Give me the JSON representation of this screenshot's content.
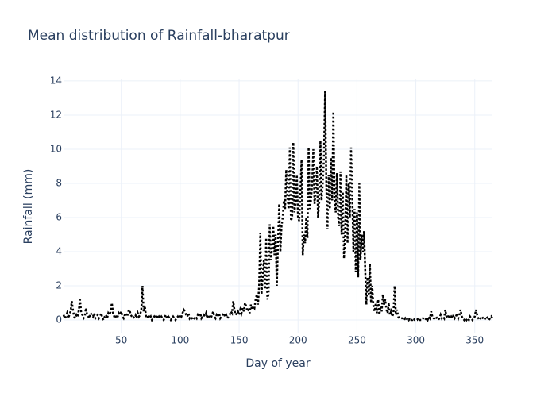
{
  "chart_data": {
    "type": "line",
    "title": "Mean distribution of Rainfall-bharatpur",
    "x_label": "Day of year",
    "y_label": "Rainfall (mm)",
    "color": "#000000",
    "line_dash": "dot",
    "grid": true,
    "xlim": [
      1,
      365
    ],
    "xticks": [
      50,
      100,
      150,
      200,
      250,
      300,
      350
    ],
    "ylim": [
      -0.79,
      14.09
    ],
    "yticks": [
      0,
      2,
      4,
      6,
      8,
      10,
      12,
      14
    ],
    "x": [
      1,
      2,
      3,
      4,
      5,
      6,
      7,
      8,
      9,
      10,
      11,
      12,
      13,
      14,
      15,
      16,
      17,
      18,
      19,
      20,
      21,
      22,
      23,
      24,
      25,
      26,
      27,
      28,
      29,
      30,
      31,
      32,
      33,
      34,
      35,
      36,
      37,
      38,
      39,
      40,
      41,
      42,
      43,
      44,
      45,
      46,
      47,
      48,
      49,
      50,
      51,
      52,
      53,
      54,
      55,
      56,
      57,
      58,
      59,
      60,
      61,
      62,
      63,
      64,
      65,
      66,
      67,
      68,
      69,
      70,
      71,
      72,
      73,
      74,
      75,
      76,
      77,
      78,
      79,
      80,
      81,
      82,
      83,
      84,
      85,
      86,
      87,
      88,
      89,
      90,
      91,
      92,
      93,
      94,
      95,
      96,
      97,
      98,
      99,
      100,
      101,
      102,
      103,
      104,
      105,
      106,
      107,
      108,
      109,
      110,
      111,
      112,
      113,
      114,
      115,
      116,
      117,
      118,
      119,
      120,
      121,
      122,
      123,
      124,
      125,
      126,
      127,
      128,
      129,
      130,
      131,
      132,
      133,
      134,
      135,
      136,
      137,
      138,
      139,
      140,
      141,
      142,
      143,
      144,
      145,
      146,
      147,
      148,
      149,
      150,
      151,
      152,
      153,
      154,
      155,
      156,
      157,
      158,
      159,
      160,
      161,
      162,
      163,
      164,
      165,
      166,
      167,
      168,
      169,
      170,
      171,
      172,
      173,
      174,
      175,
      176,
      177,
      178,
      179,
      180,
      181,
      182,
      183,
      184,
      185,
      186,
      187,
      188,
      189,
      190,
      191,
      192,
      193,
      194,
      195,
      196,
      197,
      198,
      199,
      200,
      201,
      202,
      203,
      204,
      205,
      206,
      207,
      208,
      209,
      210,
      211,
      212,
      213,
      214,
      215,
      216,
      217,
      218,
      219,
      220,
      221,
      222,
      223,
      224,
      225,
      226,
      227,
      228,
      229,
      230,
      231,
      232,
      233,
      234,
      235,
      236,
      237,
      238,
      239,
      240,
      241,
      242,
      243,
      244,
      245,
      246,
      247,
      248,
      249,
      250,
      251,
      252,
      253,
      254,
      255,
      256,
      257,
      258,
      259,
      260,
      261,
      262,
      263,
      264,
      265,
      266,
      267,
      268,
      269,
      270,
      271,
      272,
      273,
      274,
      275,
      276,
      277,
      278,
      279,
      280,
      281,
      282,
      283,
      284,
      285,
      286,
      287,
      288,
      289,
      290,
      291,
      292,
      293,
      294,
      295,
      296,
      297,
      298,
      299,
      300,
      301,
      302,
      303,
      304,
      305,
      306,
      307,
      308,
      309,
      310,
      311,
      312,
      313,
      314,
      315,
      316,
      317,
      318,
      319,
      320,
      321,
      322,
      323,
      324,
      325,
      326,
      327,
      328,
      329,
      330,
      331,
      332,
      333,
      334,
      335,
      336,
      337,
      338,
      339,
      340,
      341,
      342,
      343,
      344,
      345,
      346,
      347,
      348,
      349,
      350,
      351,
      352,
      353,
      354,
      355,
      356,
      357,
      358,
      359,
      360,
      361,
      362,
      363,
      364,
      365
    ],
    "values": [
      0.3,
      0.1,
      0.2,
      0.4,
      0.1,
      0.3,
      0.5,
      1.1,
      0.6,
      0.2,
      0.1,
      0.3,
      0.2,
      0.6,
      1.2,
      0.4,
      0.3,
      0.1,
      0.2,
      0.7,
      0.3,
      0.2,
      0.1,
      0.4,
      0.3,
      0.2,
      0.4,
      0.1,
      0.2,
      0.3,
      0.1,
      0.2,
      0.4,
      0.1,
      0.0,
      0.2,
      0.3,
      0.1,
      0.4,
      0.3,
      0.5,
      1.0,
      0.4,
      0.2,
      0.3,
      0.1,
      0.2,
      0.4,
      0.3,
      0.5,
      0.2,
      0.1,
      0.3,
      0.4,
      0.2,
      0.5,
      0.6,
      0.3,
      0.2,
      0.1,
      0.2,
      0.3,
      0.1,
      0.4,
      0.2,
      0.3,
      0.6,
      2.0,
      0.5,
      0.8,
      0.2,
      0.1,
      0.3,
      0.1,
      0.2,
      0.0,
      0.1,
      0.2,
      0.1,
      0.3,
      0.1,
      0.2,
      0.1,
      0.2,
      0.1,
      0.0,
      0.2,
      0.3,
      0.1,
      0.2,
      0.1,
      0.0,
      0.1,
      0.2,
      0.1,
      0.0,
      0.1,
      0.2,
      0.1,
      0.3,
      0.2,
      0.4,
      0.6,
      0.5,
      0.3,
      0.2,
      0.4,
      0.1,
      0.2,
      0.1,
      0.0,
      0.1,
      0.2,
      0.1,
      0.3,
      0.2,
      0.4,
      0.1,
      0.2,
      0.3,
      0.2,
      0.4,
      0.1,
      0.3,
      0.2,
      0.1,
      0.3,
      0.5,
      0.2,
      0.1,
      0.3,
      0.2,
      0.4,
      0.1,
      0.2,
      0.3,
      0.4,
      0.2,
      0.3,
      0.1,
      0.2,
      0.3,
      0.5,
      0.4,
      1.1,
      0.6,
      0.3,
      0.4,
      0.5,
      0.3,
      0.6,
      0.4,
      0.7,
      0.5,
      1.0,
      0.8,
      0.5,
      0.6,
      0.4,
      0.9,
      0.6,
      0.8,
      0.7,
      1.2,
      1.5,
      0.9,
      2.0,
      5.1,
      1.5,
      2.5,
      3.5,
      1.8,
      4.8,
      1.2,
      1.5,
      5.6,
      3.5,
      4.2,
      5.5,
      3.8,
      5.0,
      2.0,
      4.5,
      6.8,
      4.0,
      5.5,
      6.0,
      7.0,
      6.5,
      8.8,
      7.2,
      6.5,
      10.1,
      5.8,
      6.0,
      10.4,
      6.3,
      7.0,
      8.5,
      6.0,
      5.8,
      7.5,
      9.4,
      3.8,
      5.0,
      4.5,
      6.0,
      4.8,
      10.1,
      6.5,
      7.0,
      8.0,
      10.0,
      6.8,
      7.5,
      9.0,
      6.0,
      6.9,
      10.5,
      7.0,
      8.0,
      9.5,
      13.4,
      8.0,
      5.3,
      8.5,
      6.5,
      9.5,
      7.0,
      12.2,
      7.0,
      6.3,
      8.6,
      6.0,
      5.5,
      8.7,
      5.0,
      7.5,
      3.6,
      5.0,
      8.5,
      4.5,
      8.0,
      6.0,
      10.1,
      7.5,
      4.0,
      6.5,
      2.8,
      6.3,
      2.5,
      8.0,
      3.5,
      5.0,
      4.0,
      5.2,
      3.0,
      0.9,
      2.5,
      1.5,
      3.3,
      1.0,
      2.0,
      0.8,
      0.5,
      1.0,
      0.4,
      1.2,
      0.3,
      0.8,
      0.5,
      1.5,
      0.9,
      1.2,
      0.6,
      0.4,
      1.0,
      0.3,
      0.5,
      0.2,
      0.4,
      2.0,
      0.3,
      0.6,
      0.2,
      0.1,
      0.1,
      0.1,
      0.1,
      0.0,
      0.1,
      0.0,
      0.1,
      0.0,
      0.1,
      0.0,
      0.0,
      0.1,
      0.0,
      0.0,
      0.0,
      0.1,
      0.0,
      0.0,
      0.0,
      0.1,
      0.0,
      0.0,
      0.1,
      0.0,
      0.2,
      0.1,
      0.5,
      0.2,
      0.1,
      0.1,
      0.2,
      0.1,
      0.0,
      0.1,
      0.3,
      0.1,
      0.2,
      0.1,
      0.6,
      0.2,
      0.1,
      0.3,
      0.1,
      0.2,
      0.1,
      0.3,
      0.1,
      0.2,
      0.4,
      0.1,
      0.3,
      0.6,
      0.2,
      0.1,
      0.0,
      0.1,
      0.0,
      0.1,
      0.0,
      0.2,
      0.1,
      0.0,
      0.1,
      0.2,
      0.6,
      0.3,
      0.1,
      0.0,
      0.1,
      0.2,
      0.1,
      0.0,
      0.1,
      0.2,
      0.1,
      0.0,
      0.1,
      0.2,
      0.1
    ]
  }
}
